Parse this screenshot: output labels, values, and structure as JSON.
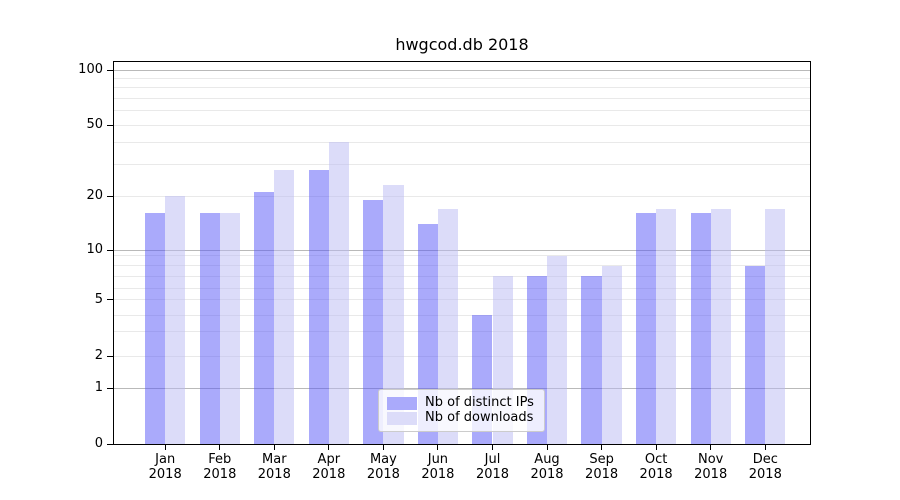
{
  "chart_data": {
    "type": "bar",
    "title": "hwgcod.db 2018",
    "year": "2018",
    "months": [
      "Jan",
      "Feb",
      "Mar",
      "Apr",
      "May",
      "Jun",
      "Jul",
      "Aug",
      "Sep",
      "Oct",
      "Nov",
      "Dec"
    ],
    "categories": [
      "Jan 2018",
      "Feb 2018",
      "Mar 2018",
      "Apr 2018",
      "May 2018",
      "Jun 2018",
      "Jul 2018",
      "Aug 2018",
      "Sep 2018",
      "Oct 2018",
      "Nov 2018",
      "Dec 2018"
    ],
    "series": [
      {
        "name": "Nb of distinct IPs",
        "color_hex": "#aaaafb",
        "color_fill": "rgba(85,85,248,0.5)",
        "values": [
          16,
          16,
          21,
          28,
          19,
          14,
          4,
          7,
          7,
          16,
          16,
          8
        ]
      },
      {
        "name": "Nb of downloads",
        "color_hex": "#dcdcf9",
        "color_fill": "rgba(185,185,243,0.5)",
        "values": [
          20,
          16,
          28,
          40,
          23,
          17,
          7,
          9,
          8,
          17,
          17,
          17
        ]
      }
    ],
    "xlabel": "",
    "ylabel": "",
    "yscale": "log-like",
    "ylim": [
      0,
      110
    ],
    "ytick_values": [
      100,
      50,
      20,
      10,
      5,
      2,
      1,
      0
    ],
    "ytick_labels": [
      "100",
      "50",
      "20",
      "10",
      "5",
      "2",
      "1",
      "0"
    ],
    "grid": {
      "on": true,
      "major": [
        1,
        10,
        100
      ],
      "minor": [
        2,
        3,
        4,
        5,
        6,
        7,
        8,
        9,
        20,
        30,
        40,
        50,
        60,
        70,
        80,
        90
      ]
    },
    "legend": {
      "position": "lower center inside",
      "entries": [
        "Nb of distinct IPs",
        "Nb of downloads"
      ]
    },
    "scale_anchors": [
      [
        0,
        0.0
      ],
      [
        1,
        0.1466
      ],
      [
        2,
        0.2304
      ],
      [
        3,
        0.2958
      ],
      [
        4,
        0.3377
      ],
      [
        5,
        0.3782
      ],
      [
        6,
        0.4084
      ],
      [
        7,
        0.4398
      ],
      [
        8,
        0.4672
      ],
      [
        9,
        0.4934
      ],
      [
        10,
        0.5079
      ],
      [
        20,
        0.6492
      ],
      [
        50,
        0.8351
      ],
      [
        100,
        0.9791
      ]
    ],
    "colors": {
      "background": "#ffffff",
      "grid_major": "#b9b9b9",
      "grid_minor": "#e9e9e9",
      "axis": "#000000",
      "text": "#000000",
      "legend_border": "#cccccc"
    }
  }
}
